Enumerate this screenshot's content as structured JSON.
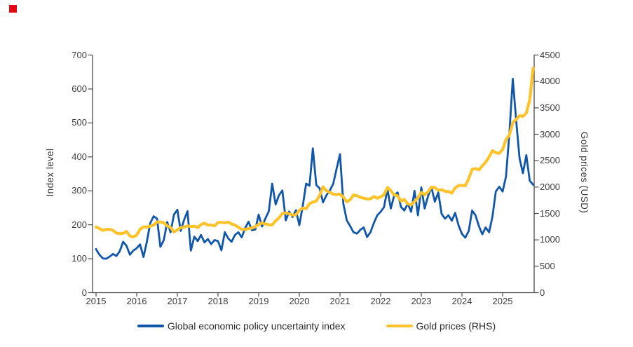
{
  "brand_mark": {
    "color": "#e30613"
  },
  "chart_data": {
    "type": "line",
    "title": "",
    "frequency": "monthly",
    "x_start_year": 2015,
    "x_ticks": [
      "2015",
      "2016",
      "2017",
      "2018",
      "2019",
      "2020",
      "2021",
      "2022",
      "2023",
      "2024",
      "2025"
    ],
    "left_axis": {
      "label": "Index level",
      "range": [
        0,
        700
      ],
      "ticks": [
        0,
        100,
        200,
        300,
        400,
        500,
        600,
        700
      ]
    },
    "right_axis": {
      "label": "Gold prices (USD)",
      "range": [
        0,
        4500
      ],
      "ticks": [
        0,
        500,
        1000,
        1500,
        2000,
        2500,
        3000,
        3500,
        4000,
        4500
      ]
    },
    "legend_position": "bottom",
    "grid": false,
    "axis_color": "#4a4a4a",
    "series": [
      {
        "name": "Global economic policy uncertainty index",
        "axis": "left",
        "color": "#1156a9",
        "values": [
          128,
          112,
          101,
          100,
          106,
          114,
          108,
          122,
          150,
          138,
          112,
          124,
          131,
          142,
          105,
          150,
          205,
          225,
          218,
          135,
          155,
          208,
          178,
          230,
          244,
          182,
          215,
          240,
          124,
          165,
          152,
          170,
          148,
          158,
          143,
          155,
          152,
          125,
          178,
          160,
          150,
          170,
          178,
          163,
          190,
          209,
          184,
          186,
          230,
          195,
          219,
          240,
          321,
          260,
          287,
          301,
          213,
          239,
          223,
          243,
          199,
          254,
          321,
          315,
          425,
          317,
          307,
          266,
          287,
          301,
          320,
          365,
          408,
          262,
          213,
          196,
          178,
          174,
          185,
          192,
          164,
          178,
          205,
          228,
          238,
          252,
          305,
          248,
          286,
          295,
          253,
          242,
          262,
          238,
          300,
          228,
          310,
          248,
          285,
          310,
          268,
          295,
          232,
          218,
          228,
          212,
          235,
          198,
          173,
          162,
          182,
          242,
          228,
          196,
          172,
          192,
          178,
          224,
          298,
          312,
          298,
          342,
          470,
          630,
          508,
          395,
          352,
          405,
          330,
          318
        ]
      },
      {
        "name": "Gold prices (RHS)",
        "axis": "right",
        "color": "#fdc32b",
        "values": [
          1245,
          1215,
          1180,
          1198,
          1200,
          1180,
          1130,
          1118,
          1125,
          1160,
          1075,
          1055,
          1090,
          1200,
          1245,
          1242,
          1260,
          1280,
          1340,
          1338,
          1325,
          1265,
          1235,
          1150,
          1190,
          1232,
          1240,
          1265,
          1250,
          1258,
          1235,
          1290,
          1315,
          1280,
          1282,
          1265,
          1330,
          1332,
          1325,
          1335,
          1302,
          1280,
          1240,
          1200,
          1198,
          1215,
          1222,
          1250,
          1292,
          1320,
          1300,
          1286,
          1284,
          1360,
          1415,
          1500,
          1510,
          1495,
          1470,
          1480,
          1560,
          1600,
          1590,
          1685,
          1715,
          1735,
          1840,
          2005,
          1930,
          1900,
          1865,
          1860,
          1865,
          1810,
          1720,
          1760,
          1850,
          1835,
          1805,
          1790,
          1775,
          1777,
          1820,
          1790,
          1815,
          1855,
          1990,
          1935,
          1850,
          1835,
          1735,
          1765,
          1680,
          1665,
          1725,
          1795,
          1900,
          1855,
          1910,
          2000,
          1990,
          1940,
          1950,
          1920,
          1915,
          1885,
          1985,
          2030,
          2030,
          2025,
          2160,
          2335,
          2350,
          2325,
          2400,
          2470,
          2570,
          2690,
          2650,
          2640,
          2710,
          2900,
          2985,
          3220,
          3280,
          3350,
          3340,
          3400,
          3650,
          4250
        ]
      }
    ]
  }
}
